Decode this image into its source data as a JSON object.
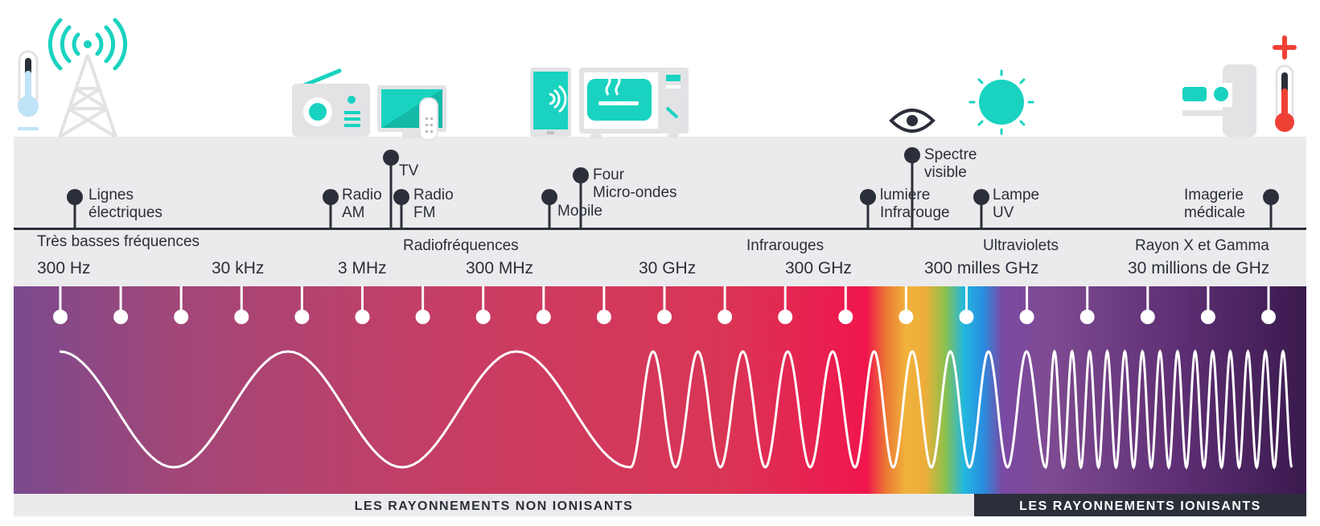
{
  "applications": [
    {
      "id": "lignes",
      "lines": [
        "Lignes",
        "électriques"
      ]
    },
    {
      "id": "radio-am",
      "lines": [
        "Radio",
        "AM"
      ]
    },
    {
      "id": "tv",
      "lines": [
        "TV"
      ]
    },
    {
      "id": "radio-fm",
      "lines": [
        "Radio",
        "FM"
      ]
    },
    {
      "id": "mobile",
      "lines": [
        "Mobile"
      ]
    },
    {
      "id": "four",
      "lines": [
        "Four",
        "Micro-ondes"
      ]
    },
    {
      "id": "infrarouge",
      "lines": [
        "lumière",
        "Infrarouge"
      ]
    },
    {
      "id": "visible",
      "lines": [
        "Spectre",
        "visible"
      ]
    },
    {
      "id": "uv",
      "lines": [
        "Lampe",
        "UV"
      ]
    },
    {
      "id": "imagerie",
      "lines": [
        "Imagerie",
        "médicale"
      ]
    }
  ],
  "categories": [
    "Très basses fréquences",
    "Radiofréquences",
    "Infrarouges",
    "Ultraviolets",
    "Rayon X et Gamma"
  ],
  "frequencies": [
    "300 Hz",
    "30 kHz",
    "3 MHz",
    "300 MHz",
    "30 GHz",
    "300 GHz",
    "300 milles GHz",
    "30 millions de GHz"
  ],
  "bands": {
    "non_ionisant": "LES RAYONNEMENTS NON IONISANTS",
    "ionisant": "LES RAYONNEMENTS IONISANTS"
  },
  "colors": {
    "dark": "#2b2f3a",
    "teal": "#19d3c0",
    "gray_band": "#ebeaec",
    "red_icon": "#ef4136"
  },
  "icons": [
    "thermometer-cold-icon",
    "radio-tower-icon",
    "radio-icon",
    "tv-icon",
    "smartphone-icon",
    "microwave-icon",
    "eye-icon",
    "sun-icon",
    "xray-machine-icon",
    "thermometer-hot-icon"
  ]
}
